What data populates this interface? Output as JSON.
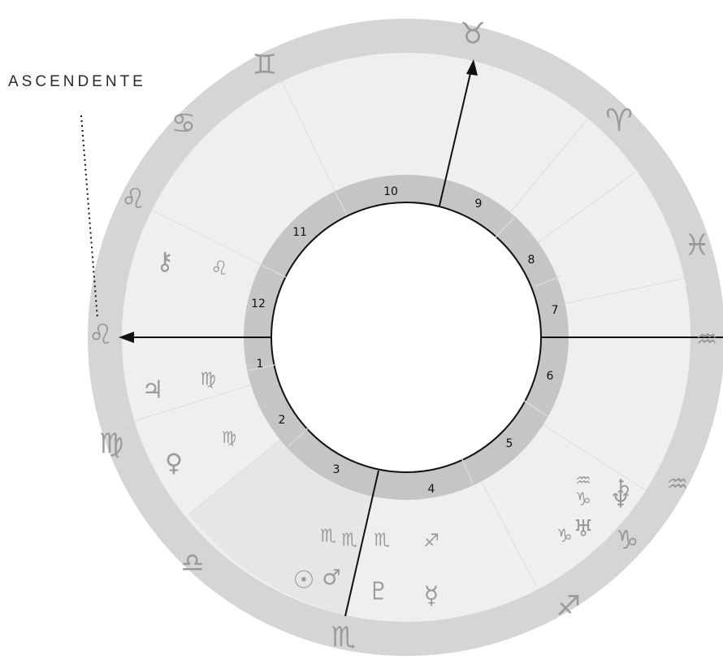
{
  "ascendant_label": "ASCENDENTE",
  "colors": {
    "outer_ring": "#d5d5d5",
    "inner_disc": "#efefef",
    "house_ring": "#c5c5c5",
    "center": "#ffffff",
    "glyph": "#9a9a9a",
    "line": "#111111"
  },
  "zodiac_ring": [
    {
      "name": "leo",
      "glyph": "♌"
    },
    {
      "name": "cancer",
      "glyph": "♋"
    },
    {
      "name": "gemini",
      "glyph": "♊"
    },
    {
      "name": "taurus",
      "glyph": "♉"
    },
    {
      "name": "aries",
      "glyph": "♈"
    },
    {
      "name": "pisces",
      "glyph": "♓"
    },
    {
      "name": "aquarius",
      "glyph": "♒"
    },
    {
      "name": "aquarius-2",
      "glyph": "♒"
    },
    {
      "name": "capricorn",
      "glyph": "♑"
    },
    {
      "name": "sagittarius",
      "glyph": "♐"
    },
    {
      "name": "scorpio",
      "glyph": "♏"
    },
    {
      "name": "libra",
      "glyph": "♎"
    },
    {
      "name": "virgo",
      "glyph": "♍"
    },
    {
      "name": "leo-asc",
      "glyph": "♌"
    }
  ],
  "house_numbers": [
    "1",
    "2",
    "3",
    "4",
    "5",
    "6",
    "7",
    "8",
    "9",
    "10",
    "11",
    "12"
  ],
  "inner_glyphs": [
    {
      "name": "chiron",
      "glyph": "⚷"
    },
    {
      "name": "leo",
      "glyph": "♌"
    },
    {
      "name": "virgo",
      "glyph": "♍"
    },
    {
      "name": "jupiter",
      "glyph": "♃"
    },
    {
      "name": "virgo-2",
      "glyph": "♍"
    },
    {
      "name": "venus",
      "glyph": "♀"
    },
    {
      "name": "scorpio",
      "glyph": "♏"
    },
    {
      "name": "scorpio-2",
      "glyph": "♏"
    },
    {
      "name": "scorpio-3",
      "glyph": "♏"
    },
    {
      "name": "sagittarius",
      "glyph": "♐"
    },
    {
      "name": "sun",
      "glyph": "☉"
    },
    {
      "name": "mars",
      "glyph": "♂"
    },
    {
      "name": "pluto",
      "glyph": "♇"
    },
    {
      "name": "mercury",
      "glyph": "☿"
    },
    {
      "name": "aquarius",
      "glyph": "♒"
    },
    {
      "name": "capricorn",
      "glyph": "♑"
    },
    {
      "name": "saturn",
      "glyph": "♄"
    },
    {
      "name": "capricorn-2",
      "glyph": "♑"
    },
    {
      "name": "neptune",
      "glyph": "♆"
    },
    {
      "name": "uranus",
      "glyph": "♅"
    }
  ]
}
